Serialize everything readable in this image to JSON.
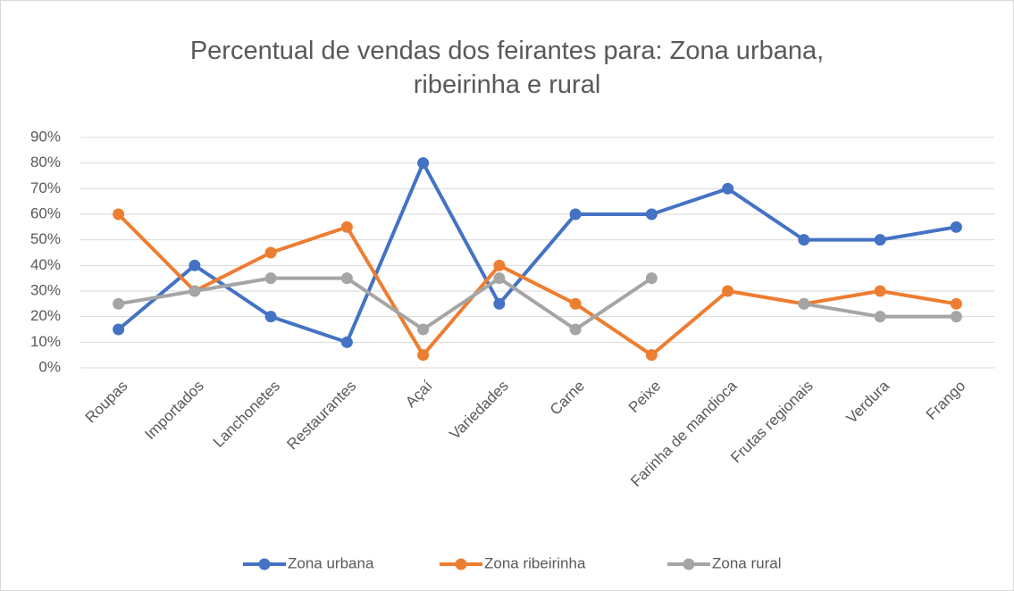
{
  "chart_data": {
    "type": "line",
    "title": "Percentual de vendas dos feirantes para: Zona urbana, ribeirinha e rural",
    "categories": [
      "Roupas",
      "Importados",
      "Lanchonetes",
      "Restaurantes",
      "Açaí",
      "Variedades",
      "Carne",
      "Peixe",
      "Farinha de mandioca",
      "Frutas regionais",
      "Verdura",
      "Frango"
    ],
    "series": [
      {
        "name": "Zona urbana",
        "color": "#4472c4",
        "values": [
          15,
          40,
          20,
          10,
          80,
          25,
          60,
          60,
          70,
          50,
          50,
          55
        ]
      },
      {
        "name": "Zona ribeirinha",
        "color": "#ed7d31",
        "values": [
          60,
          30,
          45,
          55,
          5,
          40,
          25,
          5,
          30,
          25,
          30,
          25
        ]
      },
      {
        "name": "Zona rural",
        "color": "#a5a5a5",
        "values": [
          25,
          30,
          35,
          35,
          15,
          35,
          15,
          35,
          null,
          25,
          20,
          20
        ]
      }
    ],
    "ylim": [
      0,
      90
    ],
    "yticks": [
      {
        "value": 0,
        "label": "0%"
      },
      {
        "value": 10,
        "label": "10%"
      },
      {
        "value": 20,
        "label": "20%"
      },
      {
        "value": 30,
        "label": "30%"
      },
      {
        "value": 40,
        "label": "40%"
      },
      {
        "value": 50,
        "label": "50%"
      },
      {
        "value": 60,
        "label": "60%"
      },
      {
        "value": 70,
        "label": "70%"
      },
      {
        "value": 80,
        "label": "80%"
      },
      {
        "value": 90,
        "label": "90%"
      }
    ],
    "grid": true,
    "legend": "bottom"
  }
}
